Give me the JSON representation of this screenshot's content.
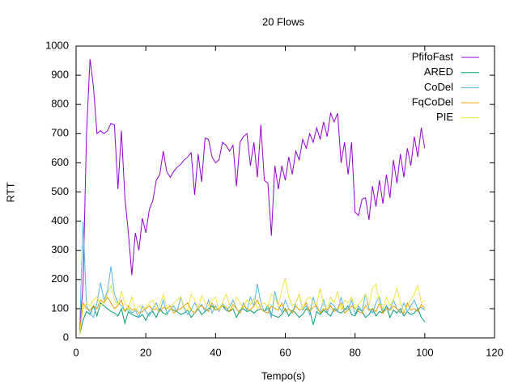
{
  "chart_data": {
    "type": "line",
    "title": "20 Flows",
    "x_label": "Tempo(s)",
    "y_label": "RTT",
    "xlim": [
      0,
      120
    ],
    "xticks": [
      0,
      20,
      40,
      60,
      80,
      100,
      120
    ],
    "ylim": [
      0,
      1000
    ],
    "yticks": [
      0,
      100,
      200,
      300,
      400,
      500,
      600,
      700,
      800,
      900,
      1000
    ],
    "grid": false,
    "legend": "top-right",
    "x": [
      1,
      2,
      3,
      4,
      5,
      6,
      7,
      8,
      9,
      10,
      11,
      12,
      13,
      14,
      15,
      16,
      17,
      18,
      19,
      20,
      21,
      22,
      23,
      24,
      25,
      26,
      27,
      28,
      29,
      30,
      31,
      32,
      33,
      34,
      35,
      36,
      37,
      38,
      39,
      40,
      41,
      42,
      43,
      44,
      45,
      46,
      47,
      48,
      49,
      50,
      51,
      52,
      53,
      54,
      55,
      56,
      57,
      58,
      59,
      60,
      61,
      62,
      63,
      64,
      65,
      66,
      67,
      68,
      69,
      70,
      71,
      72,
      73,
      74,
      75,
      76,
      77,
      78,
      79,
      80,
      81,
      82,
      83,
      84,
      85,
      86,
      87,
      88,
      89,
      90,
      91,
      92,
      93,
      94,
      95,
      96,
      97,
      98,
      99,
      100
    ],
    "series": [
      {
        "name": "PfifoFast",
        "color": "#9400d3",
        "values": [
          30,
          180,
          700,
          955,
          860,
          700,
          710,
          700,
          710,
          735,
          730,
          510,
          710,
          480,
          360,
          215,
          360,
          300,
          410,
          360,
          440,
          470,
          540,
          560,
          640,
          570,
          550,
          570,
          585,
          595,
          610,
          620,
          635,
          490,
          630,
          535,
          685,
          680,
          620,
          600,
          610,
          670,
          660,
          640,
          660,
          520,
          670,
          690,
          700,
          590,
          670,
          550,
          730,
          540,
          530,
          350,
          590,
          510,
          590,
          540,
          620,
          560,
          640,
          610,
          680,
          650,
          700,
          670,
          720,
          680,
          740,
          690,
          770,
          740,
          770,
          600,
          670,
          560,
          670,
          430,
          420,
          475,
          480,
          405,
          520,
          450,
          540,
          460,
          560,
          480,
          610,
          530,
          630,
          550,
          650,
          590,
          690,
          620,
          720,
          650
        ]
      },
      {
        "name": "ARED",
        "color": "#009e73",
        "values": [
          10,
          60,
          90,
          80,
          110,
          75,
          120,
          110,
          100,
          90,
          85,
          75,
          100,
          50,
          90,
          80,
          75,
          70,
          80,
          60,
          85,
          90,
          70,
          100,
          85,
          80,
          100,
          95,
          90,
          80,
          85,
          95,
          70,
          85,
          100,
          80,
          90,
          100,
          110,
          95,
          100,
          110,
          95,
          90,
          100,
          70,
          95,
          100,
          90,
          95,
          85,
          95,
          100,
          90,
          110,
          80,
          75,
          70,
          80,
          100,
          75,
          95,
          85,
          70,
          80,
          100,
          95,
          45,
          90,
          80,
          95,
          85,
          75,
          100,
          90,
          85,
          95,
          110,
          80,
          75,
          100,
          90,
          70,
          80,
          100,
          75,
          90,
          85,
          110,
          70,
          95,
          85,
          100,
          75,
          90,
          80,
          85,
          100,
          70,
          55
        ]
      },
      {
        "name": "CoDel",
        "color": "#56b4e9",
        "values": [
          20,
          400,
          110,
          85,
          70,
          120,
          190,
          130,
          160,
          245,
          150,
          120,
          110,
          90,
          100,
          85,
          95,
          70,
          110,
          90,
          75,
          100,
          120,
          90,
          130,
          85,
          95,
          110,
          90,
          140,
          100,
          80,
          95,
          120,
          100,
          115,
          90,
          130,
          85,
          110,
          90,
          120,
          95,
          105,
          130,
          100,
          85,
          120,
          95,
          140,
          110,
          185,
          120,
          90,
          100,
          70,
          160,
          110,
          90,
          130,
          100,
          85,
          120,
          150,
          95,
          110,
          80,
          140,
          100,
          90,
          130,
          85,
          120,
          110,
          90,
          140,
          95,
          100,
          130,
          80,
          110,
          90,
          150,
          100,
          85,
          120,
          140,
          90,
          110,
          95,
          130,
          100,
          85,
          120,
          90,
          110,
          130,
          100,
          105,
          95
        ]
      },
      {
        "name": "FqCoDel",
        "color": "#e69f00",
        "values": [
          15,
          120,
          100,
          95,
          110,
          100,
          130,
          120,
          140,
          120,
          100,
          110,
          130,
          90,
          110,
          95,
          100,
          85,
          90,
          100,
          110,
          95,
          100,
          90,
          105,
          100,
          110,
          85,
          95,
          100,
          110,
          120,
          95,
          85,
          105,
          110,
          100,
          90,
          120,
          95,
          100,
          110,
          105,
          90,
          115,
          100,
          85,
          110,
          100,
          95,
          110,
          130,
          100,
          90,
          85,
          110,
          100,
          95,
          120,
          90,
          100,
          85,
          110,
          95,
          100,
          120,
          90,
          105,
          110,
          85,
          100,
          95,
          110,
          90,
          100,
          120,
          85,
          95,
          110,
          100,
          90,
          85,
          110,
          95,
          100,
          90,
          120,
          85,
          100,
          95,
          110,
          100,
          90,
          85,
          120,
          95,
          100,
          90,
          115,
          100
        ]
      },
      {
        "name": "PIE",
        "color": "#f0e442",
        "values": [
          10,
          100,
          120,
          110,
          130,
          140,
          110,
          125,
          150,
          180,
          130,
          110,
          160,
          120,
          100,
          140,
          95,
          110,
          100,
          105,
          120,
          130,
          100,
          110,
          150,
          105,
          95,
          120,
          130,
          140,
          105,
          95,
          150,
          130,
          100,
          145,
          120,
          110,
          130,
          140,
          95,
          120,
          150,
          110,
          100,
          140,
          120,
          105,
          130,
          115,
          135,
          100,
          115,
          120,
          105,
          150,
          140,
          110,
          165,
          205,
          140,
          110,
          120,
          150,
          100,
          130,
          140,
          120,
          115,
          170,
          110,
          100,
          140,
          120,
          160,
          95,
          130,
          120,
          140,
          100,
          115,
          130,
          150,
          110,
          170,
          185,
          120,
          100,
          140,
          110,
          130,
          170,
          120,
          90,
          110,
          130,
          150,
          180,
          120,
          130
        ]
      }
    ]
  }
}
